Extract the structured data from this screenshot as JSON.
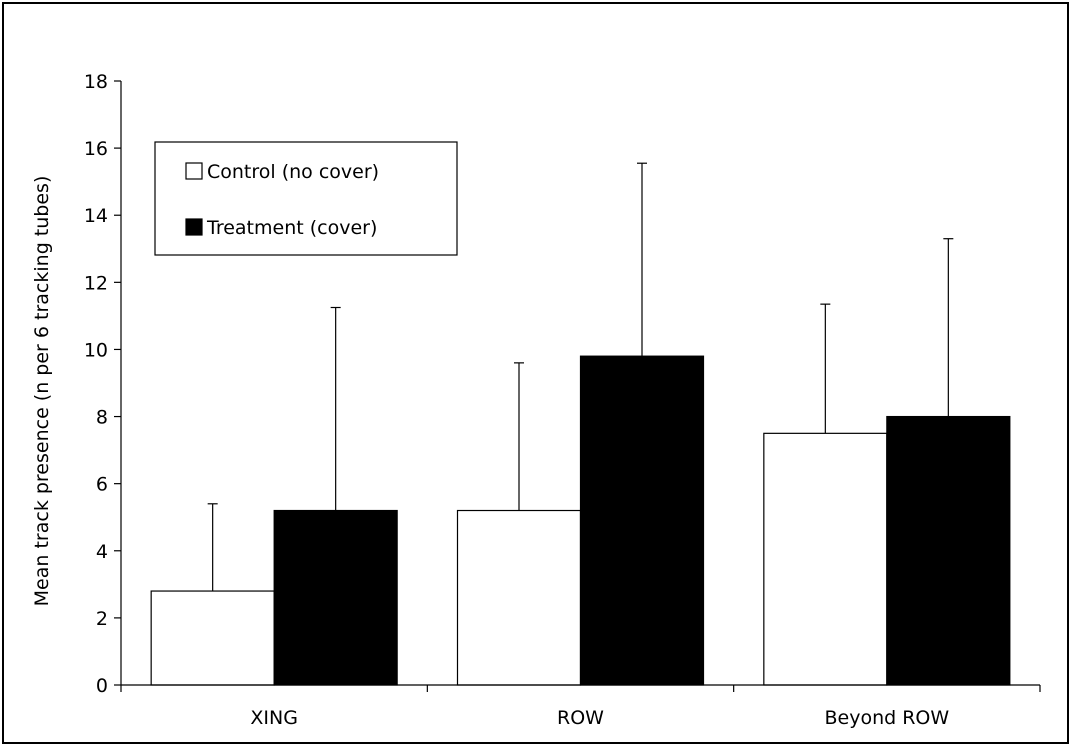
{
  "chart_data": {
    "type": "bar",
    "title": "",
    "xlabel": "",
    "ylabel": "Mean track presence (n per 6 tracking tubes)",
    "ylim": [
      0,
      18
    ],
    "yticks": [
      0,
      2,
      4,
      6,
      8,
      10,
      12,
      14,
      16,
      18
    ],
    "categories": [
      "XING",
      "ROW",
      "Beyond ROW"
    ],
    "series": [
      {
        "name": "Control (no cover)",
        "color": "#ffffff",
        "values": [
          2.8,
          5.2,
          7.5
        ],
        "error_upper": [
          2.6,
          4.4,
          3.85
        ]
      },
      {
        "name": "Treatment (cover)",
        "color": "#000000",
        "values": [
          5.2,
          9.8,
          8.0
        ],
        "error_upper": [
          6.05,
          5.75,
          5.3
        ]
      }
    ],
    "legend_position": "top-left",
    "grid": false
  }
}
